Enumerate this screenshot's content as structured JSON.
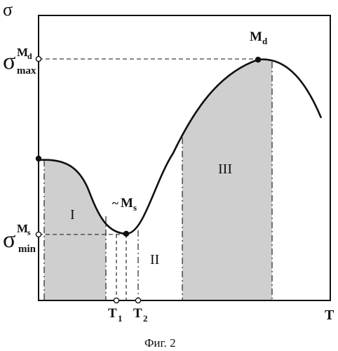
{
  "figure": {
    "caption": "Фиг. 2",
    "axes": {
      "y_symbol": "σ",
      "x_symbol": "T"
    },
    "stress_labels": {
      "max": {
        "base": "σ",
        "sup": "M",
        "sup_sub": "d",
        "sub": "max"
      },
      "min": {
        "base": "σ",
        "sup": "M",
        "sup_sub": "s",
        "sub": "min"
      }
    },
    "points": {
      "md": {
        "main": "M",
        "sub": "d"
      },
      "ms": {
        "prefix": "~",
        "main": "M",
        "sub": "s"
      }
    },
    "regions": [
      "I",
      "II",
      "III"
    ],
    "temperature_marks": [
      {
        "main": "T",
        "sub": "1"
      },
      {
        "main": "T",
        "sub": "2"
      }
    ],
    "colors": {
      "curve": "#111111",
      "shade": "#cfcfcf",
      "frame": "#111111"
    }
  }
}
